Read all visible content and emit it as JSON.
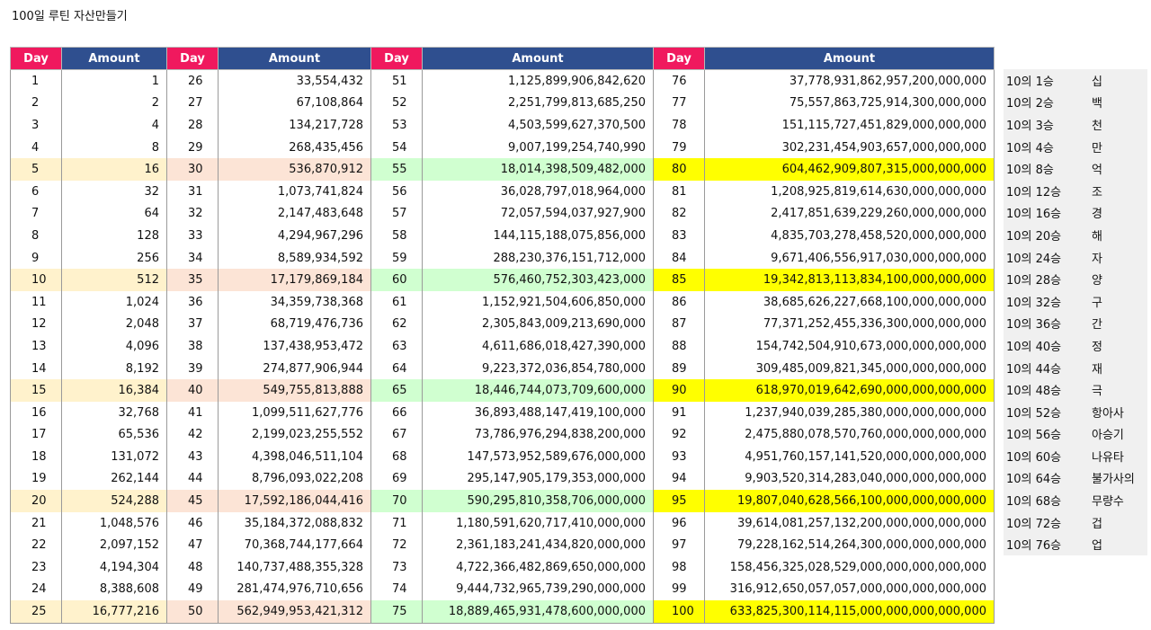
{
  "title": "100일 루틴 자산만들기",
  "headers": {
    "day": "Day",
    "amount": "Amount"
  },
  "rows": [
    [
      [
        "1",
        "1"
      ],
      [
        "26",
        "33,554,432"
      ],
      [
        "51",
        "1,125,899,906,842,620"
      ],
      [
        "76",
        "37,778,931,862,957,200,000,000"
      ]
    ],
    [
      [
        "2",
        "2"
      ],
      [
        "27",
        "67,108,864"
      ],
      [
        "52",
        "2,251,799,813,685,250"
      ],
      [
        "77",
        "75,557,863,725,914,300,000,000"
      ]
    ],
    [
      [
        "3",
        "4"
      ],
      [
        "28",
        "134,217,728"
      ],
      [
        "53",
        "4,503,599,627,370,500"
      ],
      [
        "78",
        "151,115,727,451,829,000,000,000"
      ]
    ],
    [
      [
        "4",
        "8"
      ],
      [
        "29",
        "268,435,456"
      ],
      [
        "54",
        "9,007,199,254,740,990"
      ],
      [
        "79",
        "302,231,454,903,657,000,000,000"
      ]
    ],
    [
      [
        "5",
        "16"
      ],
      [
        "30",
        "536,870,912"
      ],
      [
        "55",
        "18,014,398,509,482,000"
      ],
      [
        "80",
        "604,462,909,807,315,000,000,000"
      ]
    ],
    [
      [
        "6",
        "32"
      ],
      [
        "31",
        "1,073,741,824"
      ],
      [
        "56",
        "36,028,797,018,964,000"
      ],
      [
        "81",
        "1,208,925,819,614,630,000,000,000"
      ]
    ],
    [
      [
        "7",
        "64"
      ],
      [
        "32",
        "2,147,483,648"
      ],
      [
        "57",
        "72,057,594,037,927,900"
      ],
      [
        "82",
        "2,417,851,639,229,260,000,000,000"
      ]
    ],
    [
      [
        "8",
        "128"
      ],
      [
        "33",
        "4,294,967,296"
      ],
      [
        "58",
        "144,115,188,075,856,000"
      ],
      [
        "83",
        "4,835,703,278,458,520,000,000,000"
      ]
    ],
    [
      [
        "9",
        "256"
      ],
      [
        "34",
        "8,589,934,592"
      ],
      [
        "59",
        "288,230,376,151,712,000"
      ],
      [
        "84",
        "9,671,406,556,917,030,000,000,000"
      ]
    ],
    [
      [
        "10",
        "512"
      ],
      [
        "35",
        "17,179,869,184"
      ],
      [
        "60",
        "576,460,752,303,423,000"
      ],
      [
        "85",
        "19,342,813,113,834,100,000,000,000"
      ]
    ],
    [
      [
        "11",
        "1,024"
      ],
      [
        "36",
        "34,359,738,368"
      ],
      [
        "61",
        "1,152,921,504,606,850,000"
      ],
      [
        "86",
        "38,685,626,227,668,100,000,000,000"
      ]
    ],
    [
      [
        "12",
        "2,048"
      ],
      [
        "37",
        "68,719,476,736"
      ],
      [
        "62",
        "2,305,843,009,213,690,000"
      ],
      [
        "87",
        "77,371,252,455,336,300,000,000,000"
      ]
    ],
    [
      [
        "13",
        "4,096"
      ],
      [
        "38",
        "137,438,953,472"
      ],
      [
        "63",
        "4,611,686,018,427,390,000"
      ],
      [
        "88",
        "154,742,504,910,673,000,000,000,000"
      ]
    ],
    [
      [
        "14",
        "8,192"
      ],
      [
        "39",
        "274,877,906,944"
      ],
      [
        "64",
        "9,223,372,036,854,780,000"
      ],
      [
        "89",
        "309,485,009,821,345,000,000,000,000"
      ]
    ],
    [
      [
        "15",
        "16,384"
      ],
      [
        "40",
        "549,755,813,888"
      ],
      [
        "65",
        "18,446,744,073,709,600,000"
      ],
      [
        "90",
        "618,970,019,642,690,000,000,000,000"
      ]
    ],
    [
      [
        "16",
        "32,768"
      ],
      [
        "41",
        "1,099,511,627,776"
      ],
      [
        "66",
        "36,893,488,147,419,100,000"
      ],
      [
        "91",
        "1,237,940,039,285,380,000,000,000,000"
      ]
    ],
    [
      [
        "17",
        "65,536"
      ],
      [
        "42",
        "2,199,023,255,552"
      ],
      [
        "67",
        "73,786,976,294,838,200,000"
      ],
      [
        "92",
        "2,475,880,078,570,760,000,000,000,000"
      ]
    ],
    [
      [
        "18",
        "131,072"
      ],
      [
        "43",
        "4,398,046,511,104"
      ],
      [
        "68",
        "147,573,952,589,676,000,000"
      ],
      [
        "93",
        "4,951,760,157,141,520,000,000,000,000"
      ]
    ],
    [
      [
        "19",
        "262,144"
      ],
      [
        "44",
        "8,796,093,022,208"
      ],
      [
        "69",
        "295,147,905,179,353,000,000"
      ],
      [
        "94",
        "9,903,520,314,283,040,000,000,000,000"
      ]
    ],
    [
      [
        "20",
        "524,288"
      ],
      [
        "45",
        "17,592,186,044,416"
      ],
      [
        "70",
        "590,295,810,358,706,000,000"
      ],
      [
        "95",
        "19,807,040,628,566,100,000,000,000,000"
      ]
    ],
    [
      [
        "21",
        "1,048,576"
      ],
      [
        "46",
        "35,184,372,088,832"
      ],
      [
        "71",
        "1,180,591,620,717,410,000,000"
      ],
      [
        "96",
        "39,614,081,257,132,200,000,000,000,000"
      ]
    ],
    [
      [
        "22",
        "2,097,152"
      ],
      [
        "47",
        "70,368,744,177,664"
      ],
      [
        "72",
        "2,361,183,241,434,820,000,000"
      ],
      [
        "97",
        "79,228,162,514,264,300,000,000,000,000"
      ]
    ],
    [
      [
        "23",
        "4,194,304"
      ],
      [
        "48",
        "140,737,488,355,328"
      ],
      [
        "73",
        "4,722,366,482,869,650,000,000"
      ],
      [
        "98",
        "158,456,325,028,529,000,000,000,000,000"
      ]
    ],
    [
      [
        "24",
        "8,388,608"
      ],
      [
        "49",
        "281,474,976,710,656"
      ],
      [
        "74",
        "9,444,732,965,739,290,000,000"
      ],
      [
        "99",
        "316,912,650,057,057,000,000,000,000,000"
      ]
    ],
    [
      [
        "25",
        "16,777,216"
      ],
      [
        "50",
        "562,949,953,421,312"
      ],
      [
        "75",
        "18,889,465,931,478,600,000,000"
      ],
      [
        "100",
        "633,825,300,114,115,000,000,000,000,000"
      ]
    ]
  ],
  "highlighted_days": [
    "5",
    "10",
    "15",
    "20",
    "25"
  ],
  "colors": {
    "day_header": "#f0195e",
    "amount_header": "#2f4f8f",
    "band1": "#fff2cc",
    "band2": "#fce4d6",
    "band3": "#d0ffd0",
    "band4": "#ffff00"
  },
  "units": [
    [
      "10의 1승",
      "십"
    ],
    [
      "10의 2승",
      "백"
    ],
    [
      "10의 3승",
      "천"
    ],
    [
      "10의 4승",
      "만"
    ],
    [
      "10의 8승",
      "억"
    ],
    [
      "10의 12승",
      "조"
    ],
    [
      "10의 16승",
      "경"
    ],
    [
      "10의 20승",
      "해"
    ],
    [
      "10의 24승",
      "자"
    ],
    [
      "10의 28승",
      "양"
    ],
    [
      "10의 32승",
      "구"
    ],
    [
      "10의 36승",
      "간"
    ],
    [
      "10의 40승",
      "정"
    ],
    [
      "10의 44승",
      "재"
    ],
    [
      "10의 48승",
      "극"
    ],
    [
      "10의 52승",
      "항아사"
    ],
    [
      "10의 56승",
      "아승기"
    ],
    [
      "10의 60승",
      "나유타"
    ],
    [
      "10의 64승",
      "불가사의"
    ],
    [
      "10의 68승",
      "무량수"
    ],
    [
      "10의 72승",
      "겁"
    ],
    [
      "10의 76승",
      "업"
    ]
  ]
}
